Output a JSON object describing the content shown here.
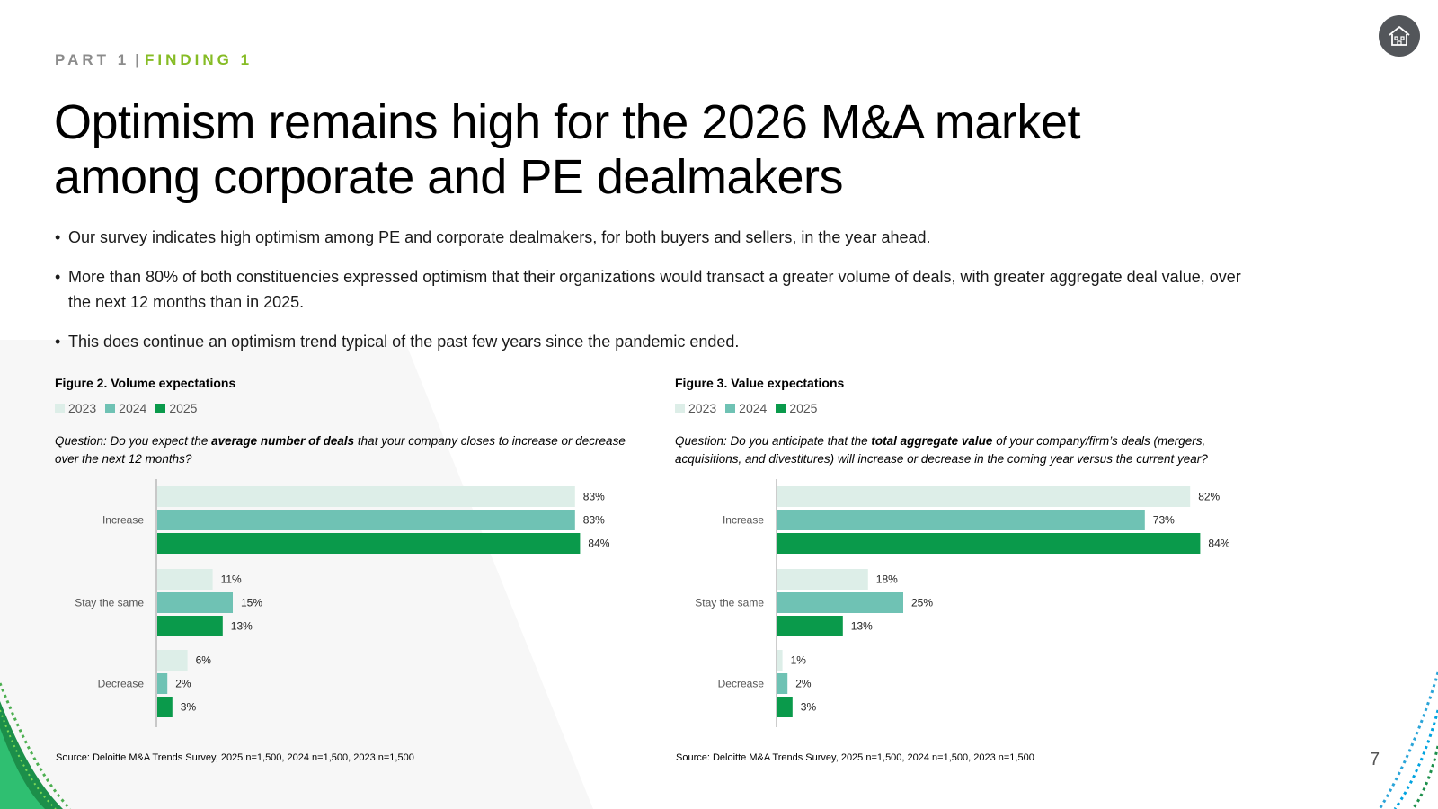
{
  "header": {
    "part": "PART 1",
    "separator": "|",
    "finding": "FINDING 1"
  },
  "nav": {
    "home_icon": "home-icon"
  },
  "title": {
    "line1": "Optimism remains high for the 2026 M&A market",
    "line2": "among corporate and PE dealmakers"
  },
  "bullets": [
    "Our survey indicates high optimism among PE and corporate dealmakers, for both buyers and sellers, in the year ahead.",
    "More than 80% of both constituencies expressed optimism that their organizations would transact a greater volume of deals, with greater aggregate deal value, over the next 12 months than in 2025.",
    "This does continue an optimism trend typical of the past few years since the pandemic ended."
  ],
  "bullet_marker": "•",
  "colors": {
    "2023": "#ddeee8",
    "2024": "#6fc2b4",
    "2025": "#0a9a4b",
    "accent": "#86bc25",
    "axis": "#9a9a9a"
  },
  "figure2": {
    "title": "Figure 2. Volume expectations",
    "question_pre": "Question: Do you expect the ",
    "question_bold": "average number of deals",
    "question_post": " that your company closes to increase or decrease over the next 12 months?",
    "source": "Source: Deloitte M&A Trends Survey, 2025 n=1,500, 2024 n=1,500, 2023 n=1,500"
  },
  "figure3": {
    "title": "Figure 3. Value expectations",
    "question_pre": "Question: Do you anticipate that the ",
    "question_bold": "total aggregate value",
    "question_post": " of your company/firm’s deals (mergers, acquisitions, and divestitures) will increase or decrease in the coming year versus the current year?",
    "source": "Source: Deloitte M&A Trends Survey, 2025 n=1,500, 2024 n=1,500, 2023 n=1,500"
  },
  "legend": [
    "2023",
    "2024",
    "2025"
  ],
  "page_number": "7",
  "chart_data": [
    {
      "type": "bar",
      "orientation": "horizontal",
      "title": "Figure 2. Volume expectations",
      "categories": [
        "Increase",
        "Stay the same",
        "Decrease"
      ],
      "series": [
        {
          "name": "2023",
          "values": [
            83,
            11,
            6
          ],
          "labels": [
            "83%",
            "11%",
            "6%"
          ]
        },
        {
          "name": "2024",
          "values": [
            83,
            15,
            2
          ],
          "labels": [
            "83%",
            "15%",
            "2%"
          ]
        },
        {
          "name": "2025",
          "values": [
            84,
            13,
            3
          ],
          "labels": [
            "84%",
            "13%",
            "3%"
          ]
        }
      ],
      "xlim": [
        0,
        100
      ],
      "grid": false,
      "legend_position": "top-left"
    },
    {
      "type": "bar",
      "orientation": "horizontal",
      "title": "Figure 3. Value expectations",
      "categories": [
        "Increase",
        "Stay the same",
        "Decrease"
      ],
      "series": [
        {
          "name": "2023",
          "values": [
            82,
            18,
            1
          ],
          "labels": [
            "82%",
            "18%",
            "1%"
          ]
        },
        {
          "name": "2024",
          "values": [
            73,
            25,
            2
          ],
          "labels": [
            "73%",
            "25%",
            "2%"
          ]
        },
        {
          "name": "2025",
          "values": [
            84,
            13,
            3
          ],
          "labels": [
            "84%",
            "13%",
            "3%"
          ]
        }
      ],
      "xlim": [
        0,
        100
      ],
      "grid": false,
      "legend_position": "top-left"
    }
  ]
}
